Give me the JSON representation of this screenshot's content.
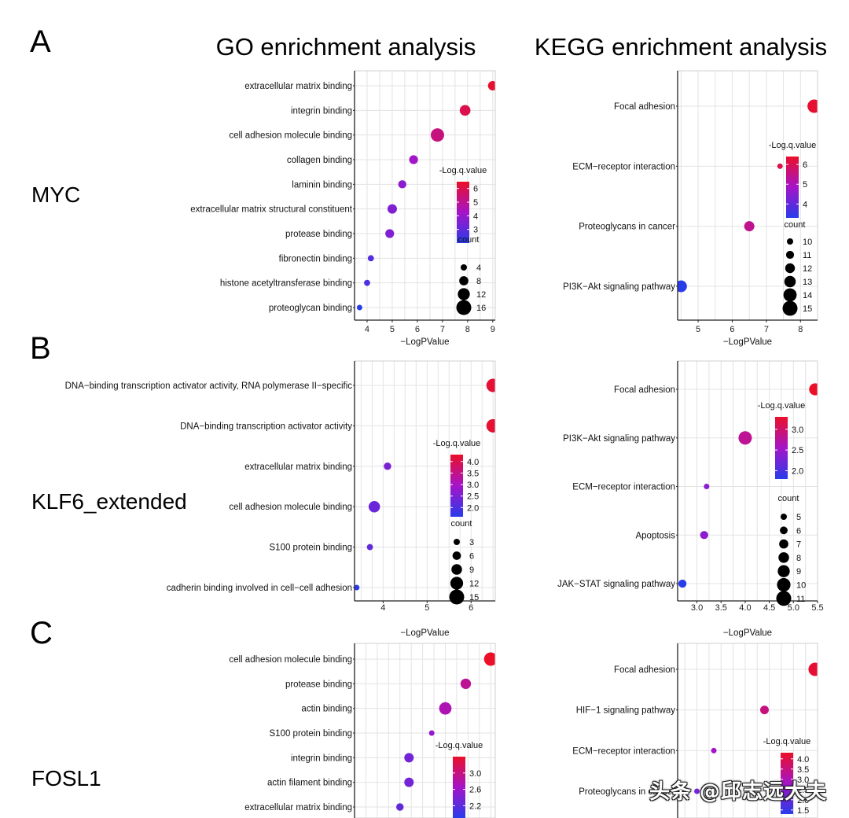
{
  "headers": {
    "go": "GO enrichment analysis",
    "kegg": "KEGG enrichment analysis"
  },
  "panels": [
    {
      "letter": "A",
      "gene": "MYC"
    },
    {
      "letter": "B",
      "gene": "KLF6_extended"
    },
    {
      "letter": "C",
      "gene": "FOSL1"
    }
  ],
  "watermark": "头条 @邱志远大夫",
  "chart_data": [
    {
      "id": "A-GO",
      "type": "scatter",
      "panel": "A",
      "xlabel": "−LogPValue",
      "ylabel": "",
      "xticks": [
        4,
        5,
        6,
        7,
        8,
        9
      ],
      "xlim": [
        3.5,
        9.1
      ],
      "categories": [
        "extracellular matrix binding",
        "integrin binding",
        "cell adhesion molecule binding",
        "collagen binding",
        "laminin binding",
        "extracellular matrix structural constituent",
        "protease binding",
        "fibronectin binding",
        "histone acetyltransferase binding",
        "proteoglycan binding"
      ],
      "x": [
        9.0,
        7.9,
        6.8,
        5.85,
        5.4,
        5.0,
        4.9,
        4.15,
        4.0,
        3.7
      ],
      "color_values": [
        6.4,
        6.0,
        5.3,
        4.2,
        3.8,
        3.6,
        3.6,
        2.8,
        2.7,
        2.0
      ],
      "count": [
        10,
        12,
        16,
        9,
        8,
        10,
        9,
        5,
        5,
        4
      ],
      "grid": true,
      "legend": {
        "color_title": "-Log.q.value",
        "color_ticks": [
          "6",
          "5",
          "4",
          "3"
        ],
        "color_range": [
          2.0,
          6.5
        ],
        "size_title": "count",
        "size_ticks": [
          "4",
          "8",
          "12",
          "16"
        ]
      }
    },
    {
      "id": "A-KEGG",
      "type": "scatter",
      "panel": "A",
      "xlabel": "−LogPValue",
      "ylabel": "",
      "xticks": [
        5,
        6,
        7,
        8
      ],
      "xlim": [
        4.4,
        8.5
      ],
      "categories": [
        "Focal adhesion",
        "ECM−receptor interaction",
        "Proteoglycans in cancer",
        "PI3K−Akt signaling pathway"
      ],
      "x": [
        8.4,
        7.4,
        6.5,
        4.5
      ],
      "color_values": [
        6.3,
        6.1,
        5.4,
        3.3
      ],
      "count": [
        15,
        10,
        13,
        14
      ],
      "grid": true,
      "legend": {
        "color_title": "-Log.q.value",
        "color_ticks": [
          "6",
          "5",
          "4"
        ],
        "color_range": [
          3.3,
          6.4
        ],
        "size_title": "count",
        "size_ticks": [
          "10",
          "11",
          "12",
          "13",
          "14",
          "15"
        ]
      }
    },
    {
      "id": "B-GO",
      "type": "scatter",
      "panel": "B",
      "xlabel": "−LogPValue",
      "ylabel": "",
      "xticks": [
        4,
        5,
        6
      ],
      "xlim": [
        3.35,
        6.55
      ],
      "categories": [
        "DNA−binding transcription activator activity, RNA polymerase II−specific",
        "DNA−binding transcription activator activity",
        "extracellular matrix binding",
        "cell adhesion molecule binding",
        "S100 protein binding",
        "cadherin binding involved in cell−cell adhesion"
      ],
      "x": [
        6.5,
        6.5,
        4.1,
        3.8,
        3.7,
        3.4
      ],
      "color_values": [
        4.2,
        4.2,
        2.5,
        2.3,
        2.2,
        1.6
      ],
      "count": [
        15,
        15,
        6,
        12,
        4,
        3
      ],
      "grid": true,
      "legend": {
        "color_title": "-Log.q.value",
        "color_ticks": [
          "4.0",
          "3.5",
          "3.0",
          "2.5",
          "2.0"
        ],
        "color_range": [
          1.6,
          4.3
        ],
        "size_title": "count",
        "size_ticks": [
          "3",
          "6",
          "9",
          "12",
          "15"
        ]
      }
    },
    {
      "id": "B-KEGG",
      "type": "scatter",
      "panel": "B",
      "xlabel": "−LogPValue",
      "ylabel": "",
      "xticks": [
        "3.0",
        "3.5",
        "4.0",
        "4.5",
        "5.0",
        "5.5"
      ],
      "xlim": [
        2.6,
        5.5
      ],
      "categories": [
        "Focal adhesion",
        "PI3K−Akt signaling pathway",
        "ECM−receptor interaction",
        "Apoptosis",
        "JAK−STAT signaling pathway"
      ],
      "x": [
        5.45,
        4.0,
        3.2,
        3.15,
        2.7
      ],
      "color_values": [
        3.3,
        2.8,
        2.4,
        2.4,
        1.8
      ],
      "count": [
        10,
        11,
        5,
        7,
        7
      ],
      "grid": true,
      "legend": {
        "color_title": "-Log.q.value",
        "color_ticks": [
          "3.0",
          "2.5",
          "2.0"
        ],
        "color_range": [
          1.8,
          3.3
        ],
        "size_title": "count",
        "size_ticks": [
          "5",
          "6",
          "7",
          "8",
          "9",
          "10",
          "11"
        ]
      }
    },
    {
      "id": "C-GO",
      "type": "scatter",
      "panel": "C",
      "xlabel": "",
      "ylabel": "",
      "xticks": [],
      "xlim": [
        3.5,
        6.6
      ],
      "categories": [
        "cell adhesion molecule binding",
        "protease binding",
        "actin binding",
        "S100 protein binding",
        "integrin binding",
        "actin filament binding",
        "extracellular matrix binding"
      ],
      "x": [
        6.5,
        5.95,
        5.5,
        5.2,
        4.7,
        4.7,
        4.5
      ],
      "color_values": [
        3.4,
        2.9,
        2.75,
        2.55,
        2.35,
        2.35,
        2.25
      ],
      "count": [
        14,
        11,
        13,
        6,
        10,
        10,
        8
      ],
      "grid": true,
      "legend": {
        "color_title": "-Log.q.value",
        "color_ticks": [
          "3.0",
          "2.6",
          "2.2"
        ],
        "color_range": [
          1.9,
          3.4
        ],
        "size_title": "",
        "size_ticks": []
      }
    },
    {
      "id": "C-KEGG",
      "type": "scatter",
      "panel": "C",
      "xlabel": "",
      "ylabel": "",
      "xticks": [],
      "xlim": [
        2.6,
        5.5
      ],
      "categories": [
        "Focal adhesion",
        "HIF−1 signaling pathway",
        "ECM−receptor interaction",
        "Proteoglycans in cancer"
      ],
      "x": [
        5.45,
        4.4,
        3.35,
        3.0
      ],
      "color_values": [
        4.2,
        3.5,
        2.8,
        2.2
      ],
      "count": [
        14,
        11,
        9,
        9
      ],
      "grid": true,
      "legend": {
        "color_title": "-Log.q.value",
        "color_ticks": [
          "4.0",
          "3.5",
          "3.0",
          "2.5",
          "2.0",
          "1.5"
        ],
        "color_range": [
          1.3,
          4.3
        ],
        "size_title": "",
        "size_ticks": []
      }
    }
  ]
}
